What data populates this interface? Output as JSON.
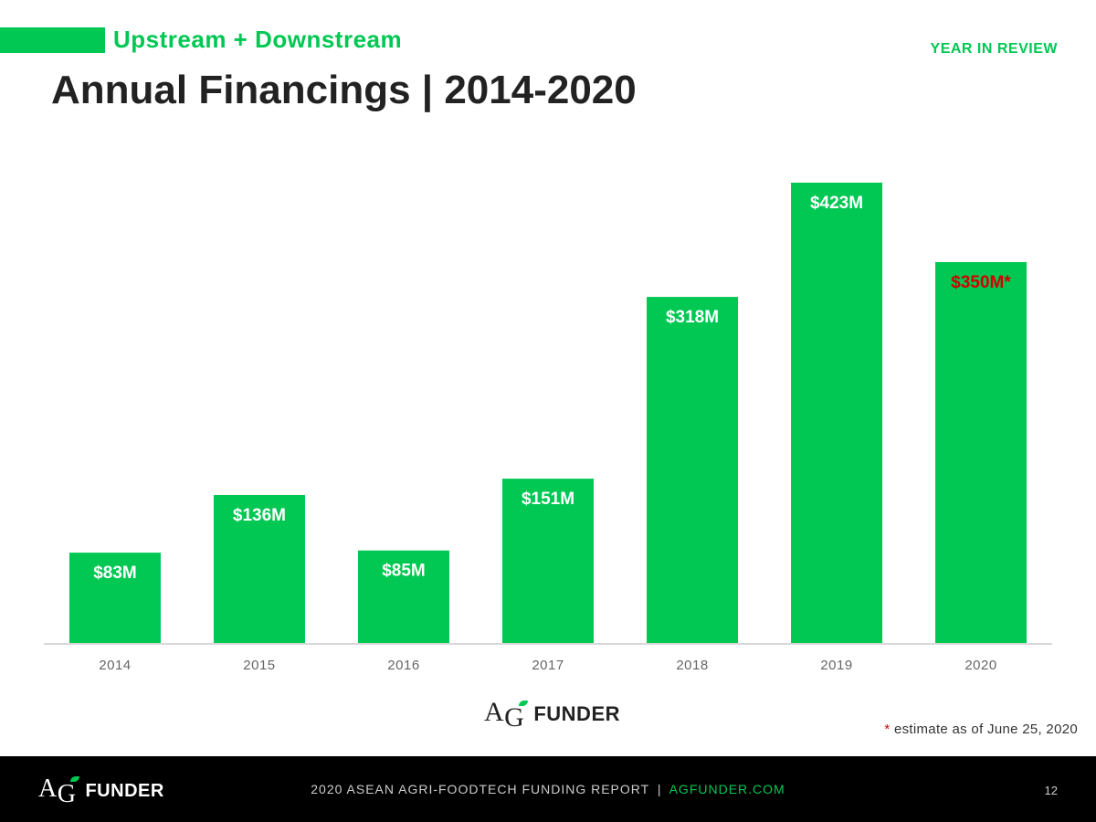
{
  "header": {
    "subtitle": "Upstream + Downstream",
    "year_in_review": "YEAR IN REVIEW",
    "title": "Annual Financings | 2014-2020"
  },
  "chart_data": {
    "type": "bar",
    "title": "Annual Financings | 2014-2020",
    "categories": [
      "2014",
      "2015",
      "2016",
      "2017",
      "2018",
      "2019",
      "2020"
    ],
    "values": [
      83,
      136,
      85,
      151,
      318,
      423,
      350
    ],
    "data_labels": [
      "$83M",
      "$136M",
      "$85M",
      "$151M",
      "$318M",
      "$423M",
      "$350M*"
    ],
    "units": "$M",
    "ylim": [
      0,
      450
    ],
    "grid": false,
    "colors": {
      "bar": "#00c853",
      "label": "#ffffff",
      "estimate_label": "#d50000",
      "axis": "#cccccc",
      "tick": "#666666"
    }
  },
  "logo": {
    "a": "A",
    "g": "G",
    "rest": "FUNDER"
  },
  "footnote": {
    "star": "*",
    "text": "estimate as of June 25, 2020"
  },
  "footer": {
    "report": "2020 ASEAN AGRI-FOODTECH FUNDING REPORT",
    "separator": "|",
    "url": "AGFUNDER.COM",
    "page": "12"
  }
}
